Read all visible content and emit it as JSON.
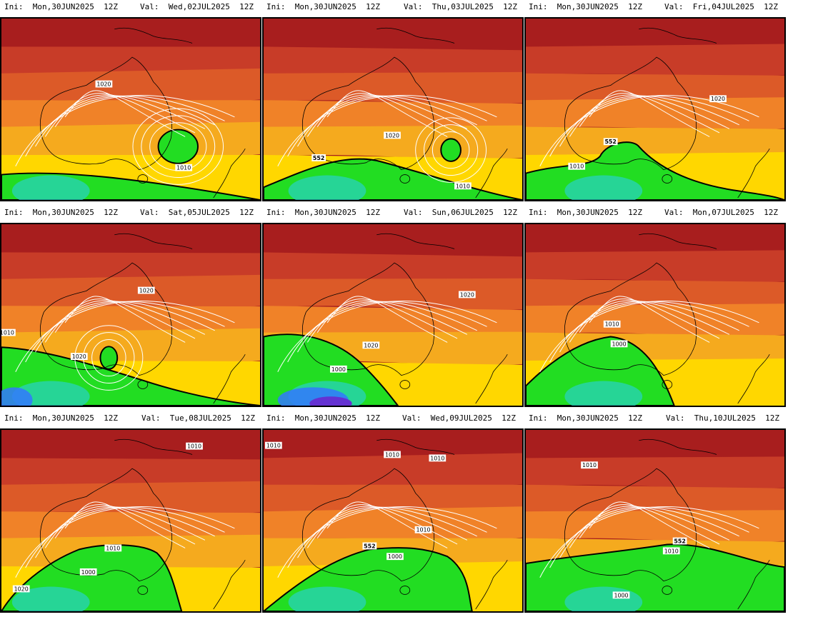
{
  "panels": [
    {
      "ini": "Ini:  Mon,30JUN2025  12Z",
      "val": "Val:  Wed,02JUL2025  12Z",
      "labels": [
        "1020",
        "1010"
      ],
      "contour_552": ""
    },
    {
      "ini": "Ini:  Mon,30JUN2025  12Z",
      "val": "Val:  Thu,03JUL2025  12Z",
      "labels": [
        "1020",
        "1010"
      ],
      "contour_552": "552"
    },
    {
      "ini": "Ini:  Mon,30JUN2025  12Z",
      "val": "Val:  Fri,04JUL2025  12Z",
      "labels": [
        "1020",
        "1010"
      ],
      "contour_552": "552"
    },
    {
      "ini": "Ini:  Mon,30JUN2025  12Z",
      "val": "Val:  Sat,05JUL2025  12Z",
      "labels": [
        "1020",
        "1010",
        "1020"
      ],
      "contour_552": ""
    },
    {
      "ini": "Ini:  Mon,30JUN2025  12Z",
      "val": "Val:  Sun,06JUL2025  12Z",
      "labels": [
        "1020",
        "1020",
        "1000"
      ],
      "contour_552": ""
    },
    {
      "ini": "Ini:  Mon,30JUN2025  12Z",
      "val": "Val:  Mon,07JUL2025  12Z",
      "labels": [
        "1010",
        "1000"
      ],
      "contour_552": ""
    },
    {
      "ini": "Ini:  Mon,30JUN2025  12Z",
      "val": "Val:  Tue,08JUL2025  12Z",
      "labels": [
        "1010",
        "1010",
        "1000",
        "1020"
      ],
      "contour_552": ""
    },
    {
      "ini": "Ini:  Mon,30JUN2025  12Z",
      "val": "Val:  Wed,09JUL2025  12Z",
      "labels": [
        "1010",
        "1010",
        "1010",
        "1010",
        "1000"
      ],
      "contour_552": "552"
    },
    {
      "ini": "Ini:  Mon,30JUN2025  12Z",
      "val": "Val:  Thu,10JUL2025  12Z",
      "labels": [
        "1010",
        "1010",
        "1000"
      ],
      "contour_552": "552"
    }
  ],
  "colors": {
    "dark_red": "#a81e1e",
    "red": "#c83c28",
    "orange_red": "#dc5a28",
    "orange": "#f08228",
    "amber": "#f5aa1e",
    "yellow": "#ffd700",
    "light_yellow": "#ffff3c",
    "green": "#22dd22",
    "cyan": "#28d2c8",
    "blue": "#3278ff",
    "violet": "#6432d2",
    "contour": "#ffffff",
    "coast": "#000000"
  }
}
